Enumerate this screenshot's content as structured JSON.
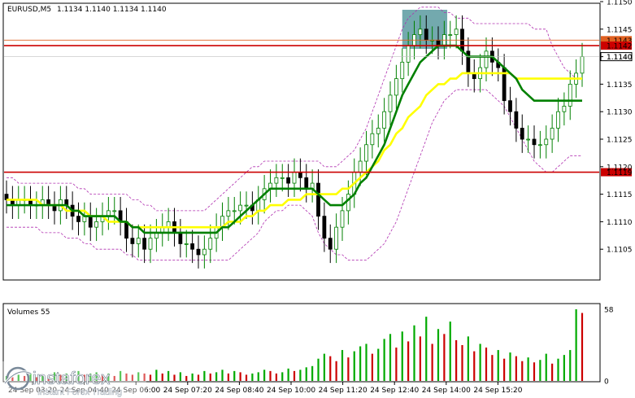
{
  "header": {
    "symbol": "EURUSD,M5",
    "ohlc": "1.1134 1.1140 1.1134 1.1140"
  },
  "volume_label": "Volumes 55",
  "watermark": {
    "brand": "instaforex",
    "tagline": "Instant Forex Trading"
  },
  "colors": {
    "bull": "#008000",
    "bear": "#000000",
    "ma_fast": "#008000",
    "ma_slow": "#ffff00",
    "bands": "#b030b0",
    "level": "#cc0000",
    "level_orange": "#e06020",
    "zone": "#5a9aa0",
    "volume_up": "#00aa00",
    "volume_down": "#cc0000"
  },
  "chart_data": {
    "type": "candlestick",
    "ylim": [
      1.11,
      1.115
    ],
    "y_ticks": [
      "1.1150",
      "1.1145",
      "1.1140",
      "1.1135",
      "1.1130",
      "1.1125",
      "1.1120",
      "1.1115",
      "1.1110",
      "1.1105"
    ],
    "x_ticks": [
      "24 Sep 03:20",
      "24 Sep 04:40",
      "24 Sep 06:00",
      "24 Sep 07:20",
      "24 Sep 08:40",
      "24 Sep 10:00",
      "24 Sep 11:20",
      "24 Sep 12:40",
      "24 Sep 14:00",
      "24 Sep 15:20"
    ],
    "levels": [
      {
        "value": 1.1143,
        "label": "1.1143",
        "kind": "orange"
      },
      {
        "value": 1.1142,
        "label": "1.1142",
        "kind": "red"
      },
      {
        "value": 1.114,
        "label": "1.1140",
        "kind": "current"
      },
      {
        "value": 1.1119,
        "label": "1.1119",
        "kind": "red"
      }
    ],
    "close": [
      1.1114,
      1.1113,
      1.1114,
      1.1114,
      1.1113,
      1.1113,
      1.1114,
      1.1113,
      1.1112,
      1.1114,
      1.1113,
      1.1111,
      1.111,
      1.1111,
      1.1109,
      1.111,
      1.1111,
      1.1112,
      1.1112,
      1.111,
      1.1107,
      1.1106,
      1.1107,
      1.1105,
      1.1107,
      1.1108,
      1.1109,
      1.111,
      1.1108,
      1.1106,
      1.1106,
      1.1105,
      1.1104,
      1.1105,
      1.1107,
      1.1109,
      1.1111,
      1.1112,
      1.1112,
      1.1113,
      1.1113,
      1.1112,
      1.1114,
      1.1116,
      1.1117,
      1.1118,
      1.1118,
      1.1117,
      1.1119,
      1.1118,
      1.1116,
      1.1117,
      1.1111,
      1.1107,
      1.1105,
      1.1109,
      1.1112,
      1.1115,
      1.1119,
      1.1121,
      1.1124,
      1.1126,
      1.1127,
      1.113,
      1.1133,
      1.1136,
      1.1139,
      1.1142,
      1.1144,
      1.1145,
      1.1143,
      1.1143,
      1.1142,
      1.1144,
      1.1144,
      1.1145,
      1.1141,
      1.1137,
      1.1136,
      1.1138,
      1.1141,
      1.1139,
      1.1138,
      1.1132,
      1.113,
      1.1127,
      1.1125,
      1.1125,
      1.1124,
      1.1124,
      1.1125,
      1.1127,
      1.113,
      1.1131,
      1.1135,
      1.1137,
      1.114
    ],
    "ma_fast": [
      1.1113,
      1.1113,
      1.1113,
      1.1113,
      1.1113,
      1.1113,
      1.1113,
      1.1113,
      1.1113,
      1.1113,
      1.1113,
      1.1112,
      1.1112,
      1.1111,
      1.1111,
      1.1111,
      1.1111,
      1.1111,
      1.1111,
      1.111,
      1.111,
      1.1109,
      1.1109,
      1.1108,
      1.1108,
      1.1108,
      1.1108,
      1.1108,
      1.1108,
      1.1108,
      1.1108,
      1.1108,
      1.1108,
      1.1108,
      1.1108,
      1.1108,
      1.1109,
      1.1109,
      1.111,
      1.1111,
      1.1112,
      1.1113,
      1.1114,
      1.1115,
      1.1116,
      1.1116,
      1.1116,
      1.1116,
      1.1116,
      1.1116,
      1.1116,
      1.1116,
      1.1115,
      1.1114,
      1.1113,
      1.1113,
      1.1113,
      1.1114,
      1.1115,
      1.1117,
      1.1118,
      1.112,
      1.1122,
      1.1124,
      1.1127,
      1.113,
      1.1133,
      1.1135,
      1.1137,
      1.1139,
      1.114,
      1.1141,
      1.1142,
      1.1142,
      1.1142,
      1.1142,
      1.1141,
      1.114,
      1.114,
      1.114,
      1.114,
      1.114,
      1.1139,
      1.1138,
      1.1137,
      1.1136,
      1.1134,
      1.1133,
      1.1132,
      1.1132,
      1.1132,
      1.1132,
      1.1132,
      1.1132,
      1.1132,
      1.1132,
      1.1132
    ],
    "ma_slow": [
      1.1114,
      1.1114,
      1.1114,
      1.1114,
      1.1114,
      1.1114,
      1.1113,
      1.1113,
      1.1113,
      1.1113,
      1.1112,
      1.1112,
      1.1112,
      1.1112,
      1.1111,
      1.1111,
      1.1111,
      1.111,
      1.111,
      1.111,
      1.111,
      1.1109,
      1.1109,
      1.1109,
      1.1109,
      1.1109,
      1.1109,
      1.1109,
      1.1109,
      1.1109,
      1.1109,
      1.1109,
      1.1109,
      1.1109,
      1.1109,
      1.1109,
      1.1109,
      1.111,
      1.111,
      1.111,
      1.1111,
      1.1111,
      1.1112,
      1.1112,
      1.1113,
      1.1113,
      1.1113,
      1.1114,
      1.1114,
      1.1114,
      1.1115,
      1.1115,
      1.1115,
      1.1115,
      1.1115,
      1.1115,
      1.1116,
      1.1116,
      1.1117,
      1.1118,
      1.1119,
      1.112,
      1.1121,
      1.1123,
      1.1124,
      1.1126,
      1.1127,
      1.1129,
      1.113,
      1.1131,
      1.1133,
      1.1134,
      1.1135,
      1.1135,
      1.1136,
      1.1136,
      1.1137,
      1.1137,
      1.1137,
      1.1137,
      1.1137,
      1.1137,
      1.1137,
      1.1137,
      1.1137,
      1.1136,
      1.1136,
      1.1136,
      1.1136,
      1.1136,
      1.1136,
      1.1136,
      1.1136,
      1.1136,
      1.1136,
      1.1136,
      1.1136
    ],
    "band_upper": [
      1.1118,
      1.1118,
      1.1117,
      1.1117,
      1.1117,
      1.1117,
      1.1117,
      1.1117,
      1.1117,
      1.1117,
      1.1117,
      1.1117,
      1.1116,
      1.1116,
      1.1115,
      1.1115,
      1.1115,
      1.1115,
      1.1115,
      1.1115,
      1.1115,
      1.1114,
      1.1114,
      1.1113,
      1.1113,
      1.1112,
      1.1112,
      1.1112,
      1.1112,
      1.1112,
      1.1112,
      1.1112,
      1.1112,
      1.1112,
      1.1113,
      1.1114,
      1.1115,
      1.1116,
      1.1117,
      1.1118,
      1.1119,
      1.112,
      1.112,
      1.1121,
      1.1121,
      1.1121,
      1.1121,
      1.1121,
      1.1121,
      1.1121,
      1.1121,
      1.1121,
      1.1121,
      1.112,
      1.112,
      1.112,
      1.1121,
      1.1122,
      1.1123,
      1.1125,
      1.1127,
      1.113,
      1.1133,
      1.1136,
      1.1139,
      1.1142,
      1.1145,
      1.1147,
      1.1148,
      1.1149,
      1.1149,
      1.1149,
      1.1149,
      1.1148,
      1.1148,
      1.1147,
      1.1147,
      1.1147,
      1.1146,
      1.1146,
      1.1146,
      1.1146,
      1.1146,
      1.1146,
      1.1146,
      1.1146,
      1.1146,
      1.1146,
      1.1145,
      1.1145,
      1.1145,
      1.1142,
      1.114,
      1.1138,
      1.1137,
      1.1136,
      1.1136
    ],
    "band_lower": [
      1.1109,
      1.1109,
      1.1109,
      1.1109,
      1.1109,
      1.1109,
      1.1108,
      1.1108,
      1.1108,
      1.1108,
      1.1107,
      1.1107,
      1.1107,
      1.1106,
      1.1106,
      1.1105,
      1.1105,
      1.1105,
      1.1105,
      1.1105,
      1.1104,
      1.1104,
      1.1103,
      1.1103,
      1.1103,
      1.1103,
      1.1103,
      1.1103,
      1.1103,
      1.1103,
      1.1103,
      1.1103,
      1.1103,
      1.1103,
      1.1103,
      1.1103,
      1.1103,
      1.1103,
      1.1104,
      1.1105,
      1.1106,
      1.1107,
      1.1108,
      1.111,
      1.1111,
      1.1112,
      1.1112,
      1.1113,
      1.1113,
      1.1113,
      1.1112,
      1.1111,
      1.1108,
      1.1106,
      1.1105,
      1.1104,
      1.1104,
      1.1103,
      1.1103,
      1.1103,
      1.1103,
      1.1104,
      1.1105,
      1.1106,
      1.1108,
      1.111,
      1.1113,
      1.1116,
      1.1119,
      1.1122,
      1.1125,
      1.1128,
      1.113,
      1.1132,
      1.1133,
      1.1134,
      1.1134,
      1.1134,
      1.1134,
      1.1134,
      1.1134,
      1.1133,
      1.1132,
      1.1131,
      1.1129,
      1.1127,
      1.1125,
      1.1123,
      1.1121,
      1.112,
      1.1119,
      1.1119,
      1.112,
      1.1121,
      1.1122,
      1.1122,
      1.1122
    ],
    "volume": {
      "ylim": [
        0,
        58
      ],
      "ticks": [
        "58",
        "0"
      ],
      "values": [
        4,
        3,
        5,
        4,
        6,
        3,
        5,
        4,
        7,
        5,
        6,
        4,
        8,
        5,
        6,
        7,
        5,
        6,
        4,
        8,
        6,
        5,
        7,
        6,
        5,
        9,
        6,
        8,
        5,
        7,
        4,
        6,
        5,
        8,
        6,
        7,
        9,
        6,
        8,
        7,
        5,
        6,
        7,
        9,
        8,
        6,
        7,
        10,
        8,
        9,
        11,
        12,
        18,
        22,
        20,
        16,
        25,
        19,
        24,
        28,
        30,
        22,
        26,
        34,
        38,
        27,
        40,
        32,
        45,
        36,
        52,
        30,
        42,
        38,
        48,
        33,
        29,
        36,
        24,
        30,
        27,
        21,
        25,
        18,
        23,
        20,
        16,
        19,
        15,
        17,
        22,
        14,
        18,
        21,
        25,
        58,
        55
      ]
    }
  }
}
